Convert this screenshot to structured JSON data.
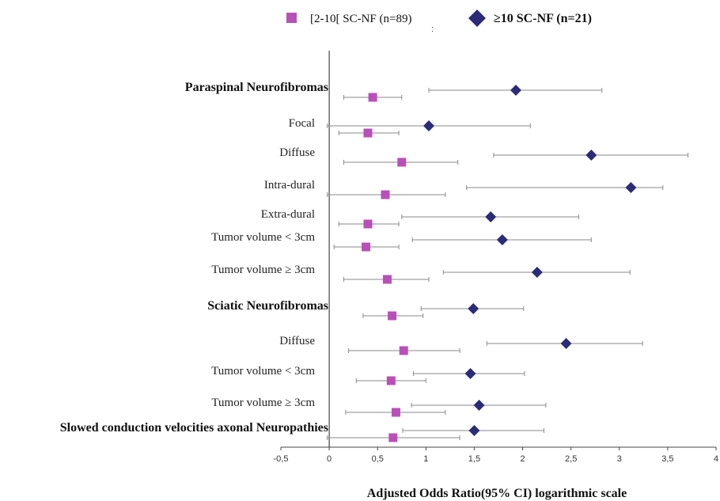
{
  "chart_data": {
    "type": "forest",
    "xlabel": "Adjusted Odds Ratio(95% CI) logarithmic scale",
    "xlim": [
      -0.5,
      4
    ],
    "x_ticks": [
      "-0,5",
      "0",
      "0,5",
      "1",
      "1,5",
      "2",
      "2,5",
      "3",
      "3,5",
      "4"
    ],
    "x_tick_values": [
      -0.5,
      0,
      0.5,
      1,
      1.5,
      2,
      2.5,
      3,
      3.5,
      4
    ],
    "reference_line": 0,
    "legend_position": "top",
    "legend_separator": ":",
    "series": [
      {
        "name": "[2-10[ SC-NF (n=89)",
        "marker": "square",
        "color": "#b94fb9"
      },
      {
        "name": "≥10 SC-NF (n=21)",
        "marker": "diamond",
        "color": "#2a2c78"
      }
    ],
    "rows": [
      {
        "label": "Paraspinal Neurofibromas",
        "bold": true,
        "s1": {
          "est": 0.45,
          "lo": 0.15,
          "hi": 0.75
        },
        "s2": {
          "est": 1.93,
          "lo": 1.03,
          "hi": 2.82
        }
      },
      {
        "label": "Focal",
        "bold": false,
        "s1": {
          "est": 0.4,
          "lo": 0.1,
          "hi": 0.72
        },
        "s2": {
          "est": 1.03,
          "lo": -0.02,
          "hi": 2.08
        }
      },
      {
        "label": "Diffuse",
        "bold": false,
        "s1": {
          "est": 0.75,
          "lo": 0.15,
          "hi": 1.33
        },
        "s2": {
          "est": 2.71,
          "lo": 1.7,
          "hi": 3.71
        }
      },
      {
        "label": "Intra-dural",
        "bold": false,
        "s1": {
          "est": 0.58,
          "lo": -0.02,
          "hi": 1.2
        },
        "s2": {
          "est": 3.12,
          "lo": 1.42,
          "hi": 3.45
        }
      },
      {
        "label": "Extra-dural",
        "bold": false,
        "s1": {
          "est": 0.4,
          "lo": 0.1,
          "hi": 0.72
        },
        "s2": {
          "est": 1.67,
          "lo": 0.75,
          "hi": 2.58
        }
      },
      {
        "label": "Tumor volume < 3cm",
        "bold": false,
        "s1": {
          "est": 0.38,
          "lo": 0.05,
          "hi": 0.72
        },
        "s2": {
          "est": 1.79,
          "lo": 0.86,
          "hi": 2.71
        }
      },
      {
        "label": "Tumor volume ≥ 3cm",
        "bold": false,
        "s1": {
          "est": 0.6,
          "lo": 0.15,
          "hi": 1.03
        },
        "s2": {
          "est": 2.15,
          "lo": 1.18,
          "hi": 3.11
        }
      },
      {
        "label": "Sciatic Neurofibromas",
        "bold": true,
        "s1": {
          "est": 0.65,
          "lo": 0.35,
          "hi": 0.97
        },
        "s2": {
          "est": 1.49,
          "lo": 0.95,
          "hi": 2.01
        }
      },
      {
        "label": "Diffuse",
        "bold": false,
        "s1": {
          "est": 0.77,
          "lo": 0.2,
          "hi": 1.35
        },
        "s2": {
          "est": 2.45,
          "lo": 1.63,
          "hi": 3.24
        }
      },
      {
        "label": "Tumor volume < 3cm",
        "bold": false,
        "s1": {
          "est": 0.64,
          "lo": 0.28,
          "hi": 1.0
        },
        "s2": {
          "est": 1.46,
          "lo": 0.87,
          "hi": 2.02
        }
      },
      {
        "label": "Tumor volume ≥ 3cm",
        "bold": false,
        "s1": {
          "est": 0.69,
          "lo": 0.17,
          "hi": 1.2
        },
        "s2": {
          "est": 1.55,
          "lo": 0.85,
          "hi": 2.24
        }
      },
      {
        "label": "Slowed conduction velocities axonal Neuropathies",
        "bold": true,
        "s1": {
          "est": 0.66,
          "lo": -0.02,
          "hi": 1.35
        },
        "s2": {
          "est": 1.5,
          "lo": 0.76,
          "hi": 2.22
        }
      }
    ]
  }
}
